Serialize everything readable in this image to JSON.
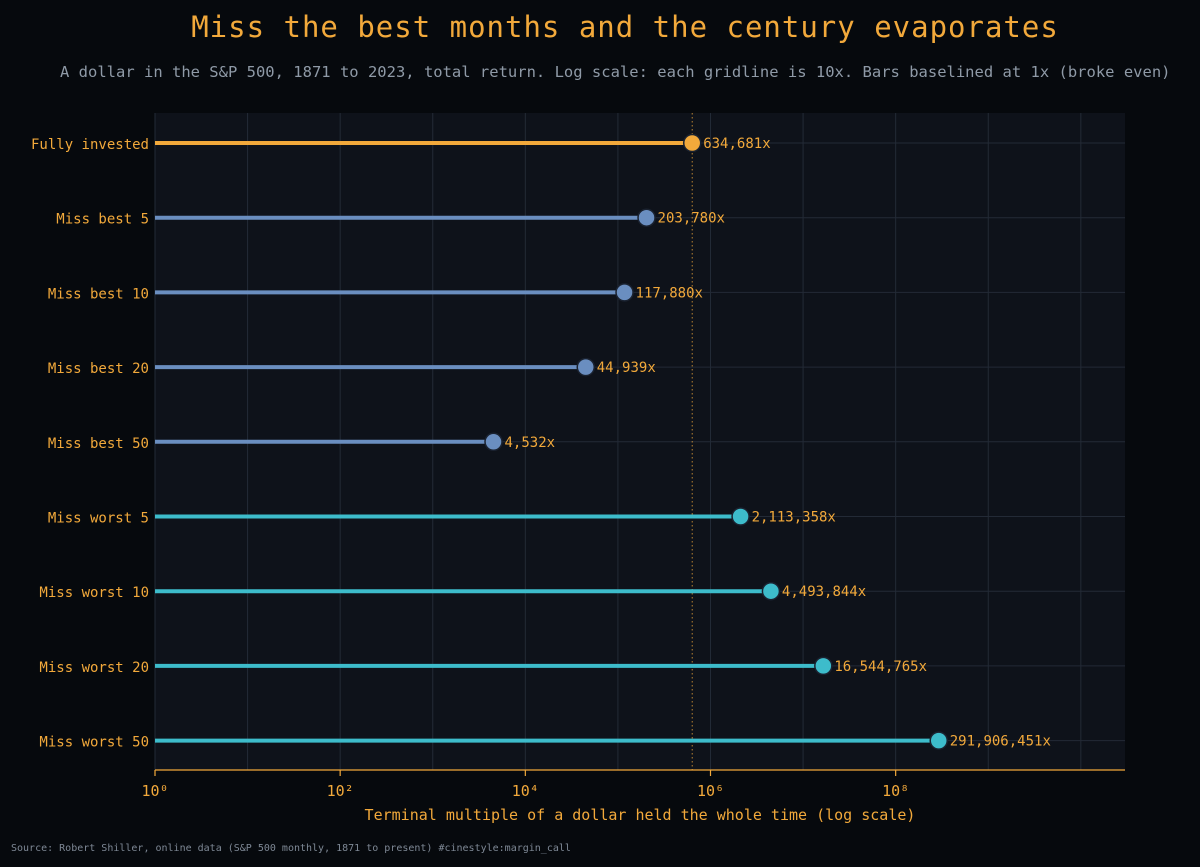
{
  "title": "Miss the best months and the century evaporates",
  "subtitle": "A dollar in the S&P 500, 1871 to 2023, total return. Log scale: each gridline is 10x. Bars baselined at 1x (broke even)",
  "source": "Source: Robert Shiller, online data (S&P 500 monthly, 1871 to present)  #cinestyle:margin_call",
  "colors": {
    "background": "#06090d",
    "plot_background": "#0e121a",
    "accent": "#f2a93b",
    "best_series": "#6a8ec0",
    "worst_series": "#3dbccb",
    "grid": "#232a36",
    "muted_text": "#8f9aa7"
  },
  "chart_data": {
    "type": "bar",
    "orientation": "horizontal",
    "style": "lollipop",
    "title": "Miss the best months and the century evaporates",
    "xlabel": "Terminal multiple of a dollar held the whole time (log scale)",
    "ylabel": "",
    "xscale": "log",
    "xlim": [
      1,
      30000000000
    ],
    "baseline": 1,
    "grid": true,
    "reference_line": {
      "value": 634681,
      "style": "dotted"
    },
    "xticks": [
      {
        "value": 1,
        "label": "10⁰"
      },
      {
        "value": 100,
        "label": "10²"
      },
      {
        "value": 10000,
        "label": "10⁴"
      },
      {
        "value": 1000000,
        "label": "10⁶"
      },
      {
        "value": 100000000,
        "label": "10⁸"
      }
    ],
    "categories": [
      "Fully invested",
      "Miss best 5",
      "Miss best 10",
      "Miss best 20",
      "Miss best 50",
      "Miss worst 5",
      "Miss worst 10",
      "Miss worst 20",
      "Miss worst 50"
    ],
    "values": [
      634681,
      203780,
      117880,
      44939,
      4532,
      2113358,
      4493844,
      16544765,
      291906451
    ],
    "value_labels": [
      "634,681x",
      "203,780x",
      "117,880x",
      "44,939x",
      "4,532x",
      "2,113,358x",
      "4,493,844x",
      "16,544,765x",
      "291,906,451x"
    ],
    "groups": [
      "full",
      "best",
      "best",
      "best",
      "best",
      "worst",
      "worst",
      "worst",
      "worst"
    ]
  }
}
